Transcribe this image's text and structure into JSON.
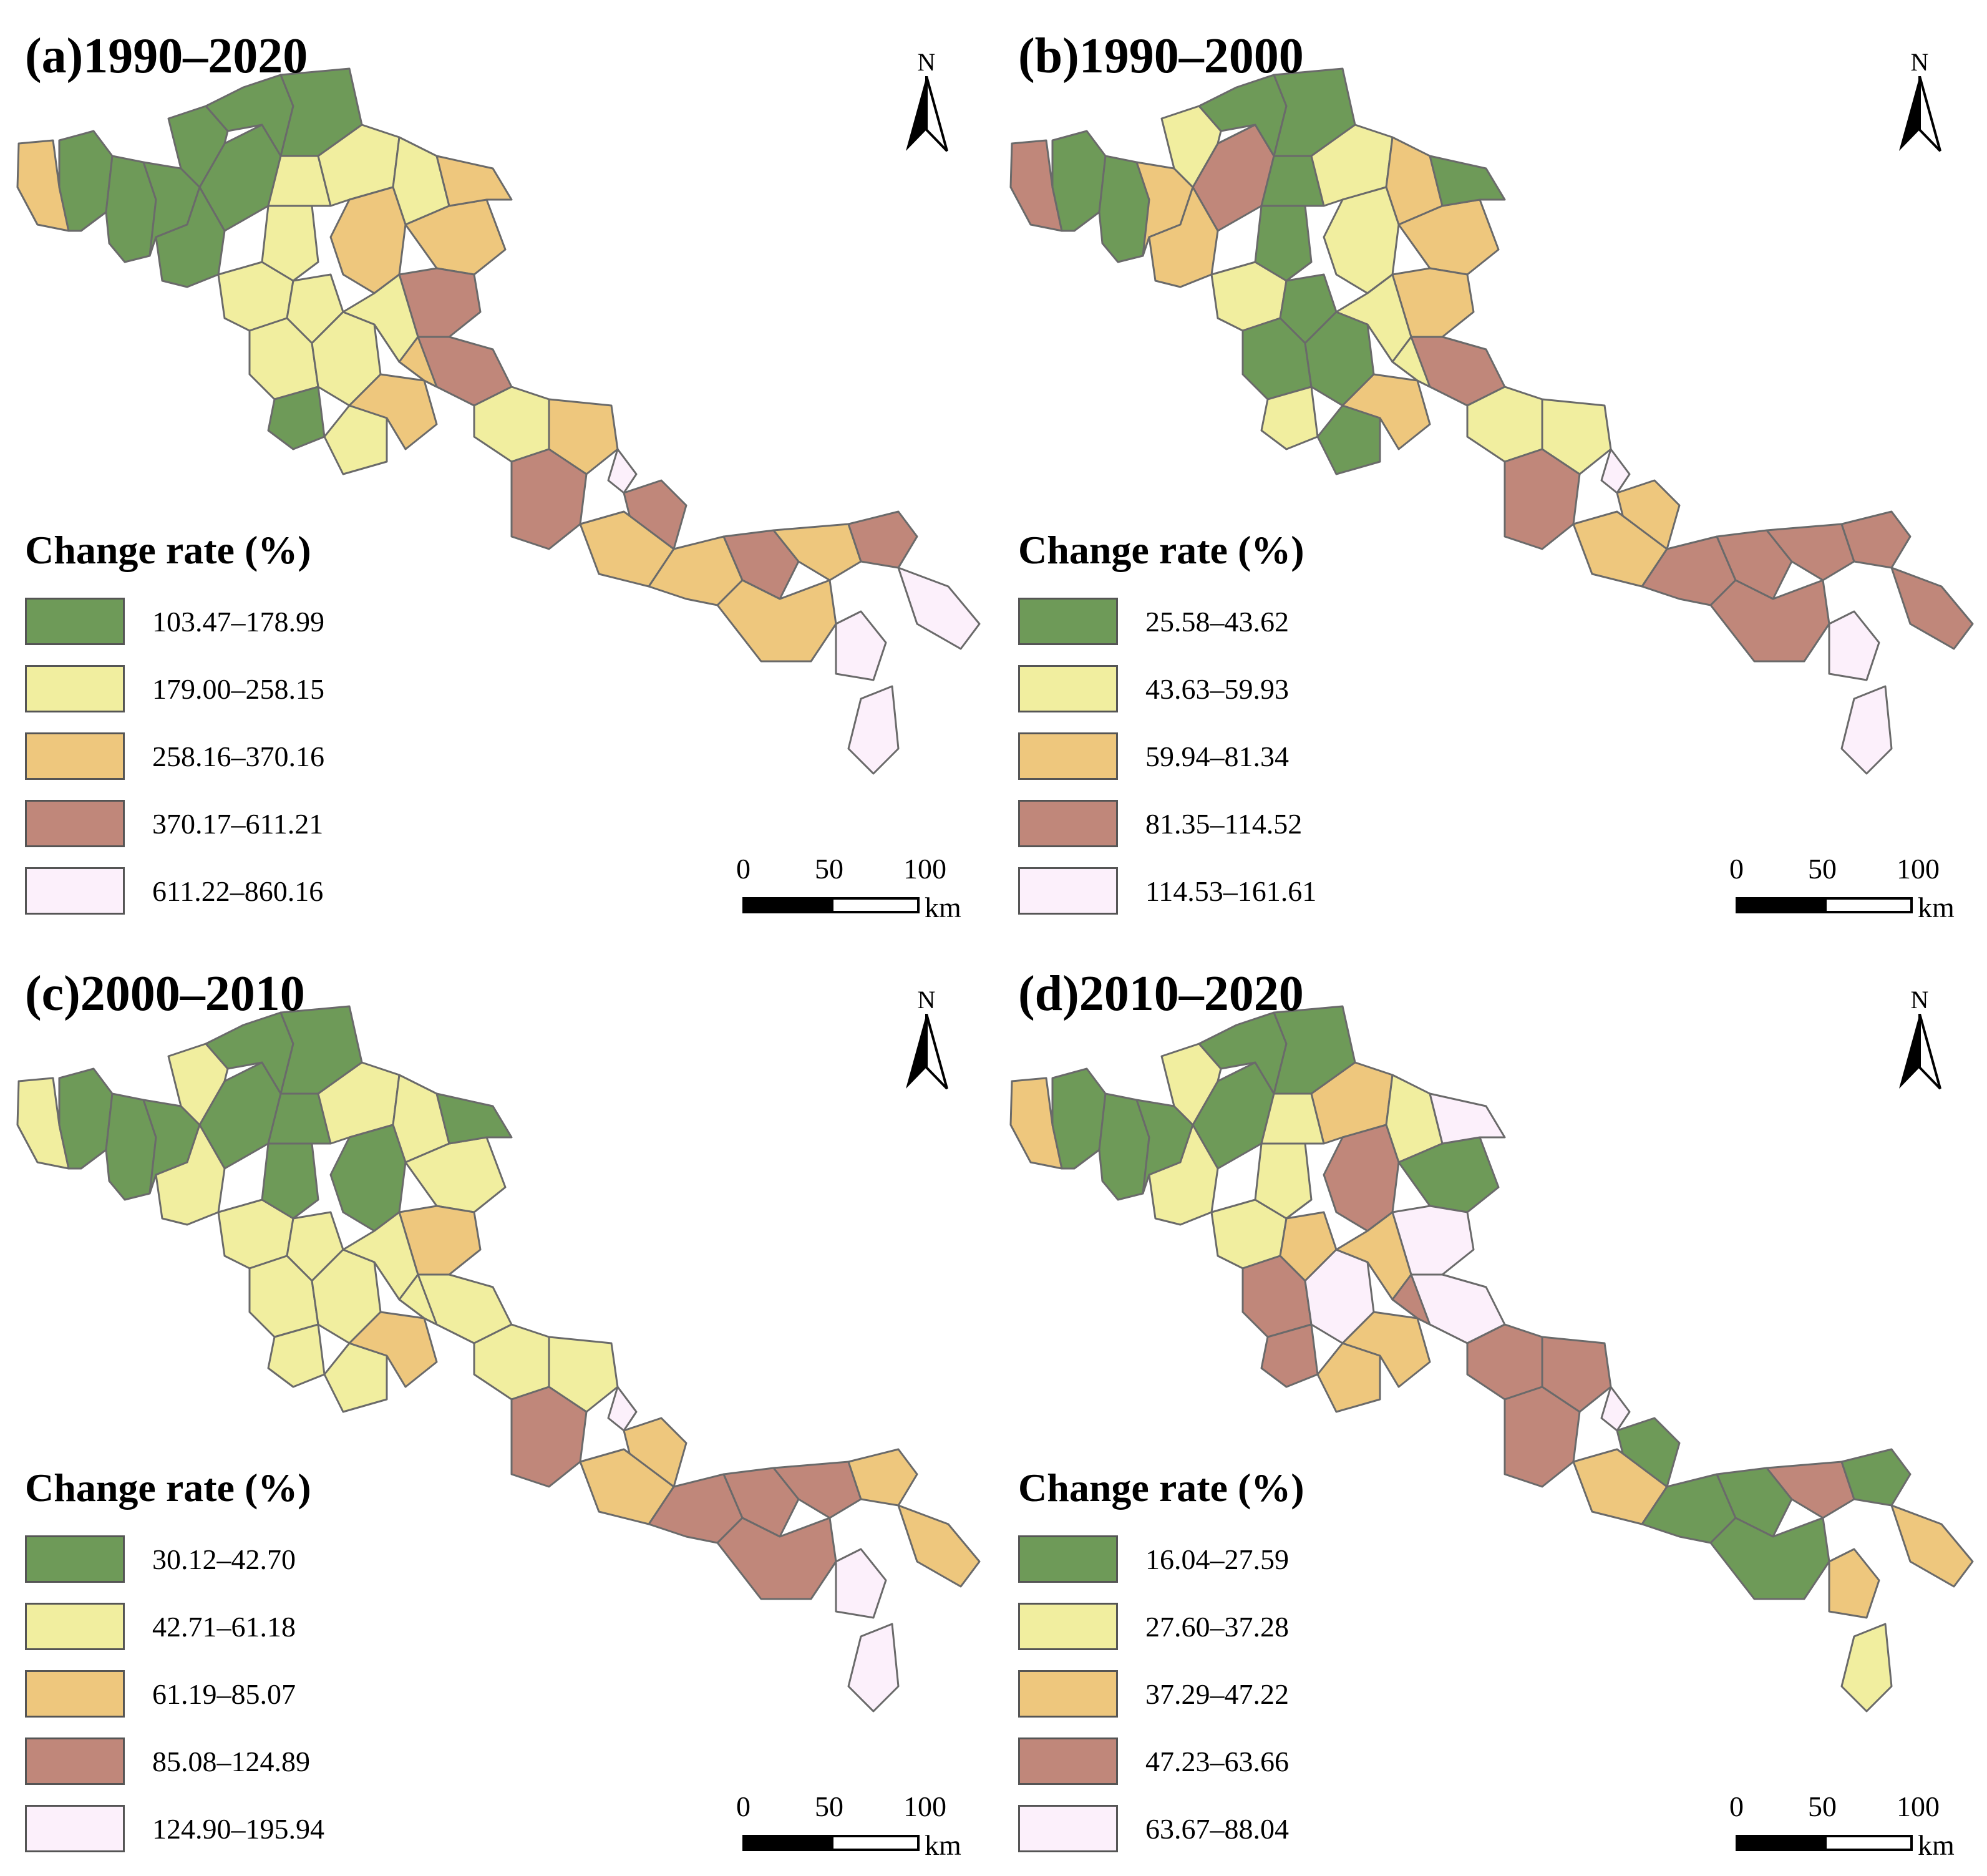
{
  "figure": {
    "legend_title": "Change rate (%)",
    "north_label": "N",
    "scale": {
      "ticks": [
        "0",
        "50",
        "100"
      ],
      "unit": "km"
    },
    "palette": {
      "class1": "#6e9a58",
      "class2": "#f1ee9f",
      "class3": "#eec77d",
      "class4": "#c0877a",
      "class5": "#fcf0fb"
    }
  },
  "panels": [
    {
      "id": "a",
      "title": "(a)1990–2020",
      "classes": [
        "103.47–178.99",
        "179.00–258.15",
        "258.16–370.16",
        "370.17–611.21",
        "611.22–860.16"
      ]
    },
    {
      "id": "b",
      "title": "(b)1990–2000",
      "classes": [
        "25.58–43.62",
        "43.63–59.93",
        "59.94–81.34",
        "81.35–114.52",
        "114.53–161.61"
      ]
    },
    {
      "id": "c",
      "title": "(c)2000–2010",
      "classes": [
        "30.12–42.70",
        "42.71–61.18",
        "61.19–85.07",
        "85.08–124.89",
        "124.90–195.94"
      ]
    },
    {
      "id": "d",
      "title": "(d)2010–2020",
      "classes": [
        "16.04–27.59",
        "27.60–37.28",
        "37.29–47.22",
        "47.23–63.66",
        "63.67–88.04"
      ]
    }
  ],
  "region_classes": {
    "a": [
      3,
      1,
      1,
      1,
      1,
      1,
      1,
      1,
      2,
      2,
      2,
      1,
      2,
      2,
      3,
      3,
      4,
      3,
      2,
      2,
      2,
      2,
      1,
      2,
      3,
      4,
      3,
      2,
      3,
      5,
      4,
      4,
      3,
      3,
      4,
      3,
      3,
      4,
      5,
      5,
      5
    ],
    "b": [
      4,
      1,
      1,
      3,
      4,
      2,
      3,
      1,
      2,
      1,
      1,
      1,
      2,
      3,
      3,
      2,
      3,
      1,
      1,
      1,
      1,
      2,
      2,
      1,
      3,
      4,
      2,
      2,
      2,
      5,
      3,
      4,
      3,
      4,
      4,
      4,
      4,
      4,
      5,
      5,
      4
    ],
    "c": [
      2,
      1,
      1,
      1,
      1,
      2,
      2,
      1,
      2,
      1,
      1,
      1,
      2,
      2,
      2,
      1,
      3,
      1,
      2,
      2,
      2,
      2,
      2,
      2,
      3,
      2,
      2,
      2,
      2,
      5,
      3,
      4,
      3,
      4,
      4,
      4,
      4,
      3,
      5,
      5,
      3
    ],
    "d": [
      3,
      1,
      1,
      1,
      1,
      2,
      2,
      1,
      2,
      2,
      2,
      1,
      3,
      2,
      1,
      4,
      5,
      5,
      3,
      4,
      5,
      3,
      4,
      3,
      3,
      5,
      4,
      4,
      4,
      5,
      1,
      4,
      3,
      1,
      1,
      4,
      1,
      1,
      3,
      2,
      3
    ]
  }
}
